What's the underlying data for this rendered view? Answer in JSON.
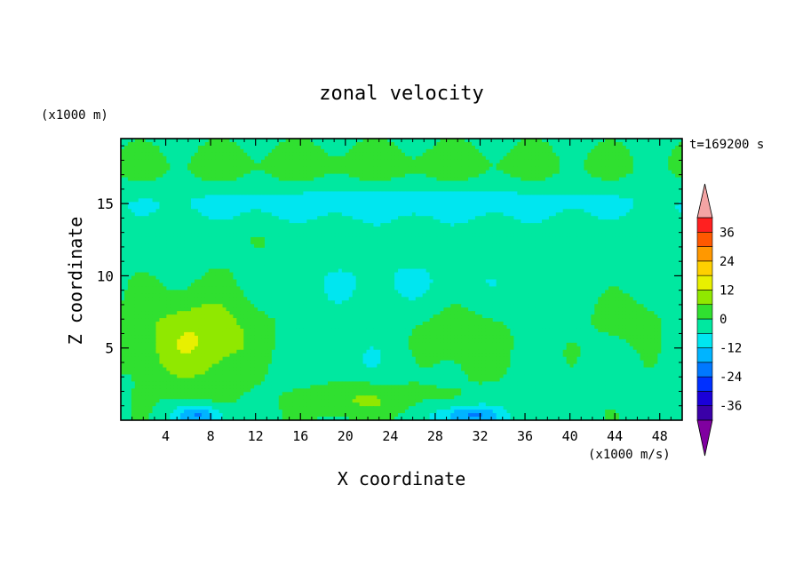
{
  "chart_data": {
    "type": "heatmap",
    "title": "zonal velocity",
    "xlabel": "X coordinate",
    "ylabel": "Z coordinate",
    "x_unit_label": "(x1000 m/s)",
    "y_unit_label": "(x1000 m)",
    "time_label": "t=169200 s",
    "xlim": [
      0,
      50
    ],
    "ylim": [
      0,
      19.5
    ],
    "x_ticks": [
      "4",
      "8",
      "12",
      "16",
      "20",
      "24",
      "28",
      "32",
      "36",
      "40",
      "44",
      "48"
    ],
    "x_tick_values": [
      4,
      8,
      12,
      16,
      20,
      24,
      28,
      32,
      36,
      40,
      44,
      48
    ],
    "y_ticks": [
      "5",
      "10",
      "15"
    ],
    "y_tick_values": [
      5,
      10,
      15
    ],
    "colorbar": {
      "labels": [
        "36",
        "24",
        "12",
        "0",
        "-12",
        "-24",
        "-36"
      ],
      "label_values": [
        36,
        24,
        12,
        0,
        -12,
        -24,
        -36
      ],
      "levels": [
        -42,
        -36,
        -30,
        -24,
        -18,
        -12,
        -6,
        0,
        6,
        12,
        18,
        24,
        30,
        36,
        42
      ],
      "colors": [
        "#5a007a",
        "#3a00a8",
        "#1a00d8",
        "#0030ff",
        "#0078ff",
        "#00b4ff",
        "#00e6f0",
        "#00e8a0",
        "#30e030",
        "#90e800",
        "#e8f000",
        "#ffd000",
        "#ff9800",
        "#ff5800",
        "#ff2020",
        "#f09898"
      ],
      "over_color": "#f4a4a4",
      "under_color": "#8000a0"
    },
    "features": [
      {
        "x": 7,
        "z": 5.5,
        "value": 14,
        "rx": 5.5,
        "rz": 3.2
      },
      {
        "x": 21,
        "z": 1.5,
        "value": 9,
        "rx": 5.5,
        "rz": 1.3
      },
      {
        "x": 30,
        "z": 5.5,
        "value": 6,
        "rx": 4.5,
        "rz": 3.0
      },
      {
        "x": 45,
        "z": 7,
        "value": 5,
        "rx": 3,
        "rz": 1.6
      },
      {
        "x": 7,
        "z": 0.3,
        "value": -18,
        "rx": 2.2,
        "rz": 0.7
      },
      {
        "x": 31,
        "z": 0.3,
        "value": -18,
        "rx": 3,
        "rz": 0.7
      },
      {
        "x": 25,
        "z": 15,
        "value": -8,
        "rx": 30,
        "rz": 1.4
      },
      {
        "x": 22,
        "z": 17.5,
        "value": 4,
        "rx": 30,
        "rz": 1.6
      },
      {
        "x": 25,
        "z": 9.5,
        "value": -5,
        "rx": 14,
        "rz": 2.2
      },
      {
        "x": 20,
        "z": 4,
        "value": -4,
        "rx": 10,
        "rz": 2.4
      },
      {
        "x": 13,
        "z": 10.5,
        "value": 2,
        "rx": 4,
        "rz": 2.2
      }
    ]
  }
}
